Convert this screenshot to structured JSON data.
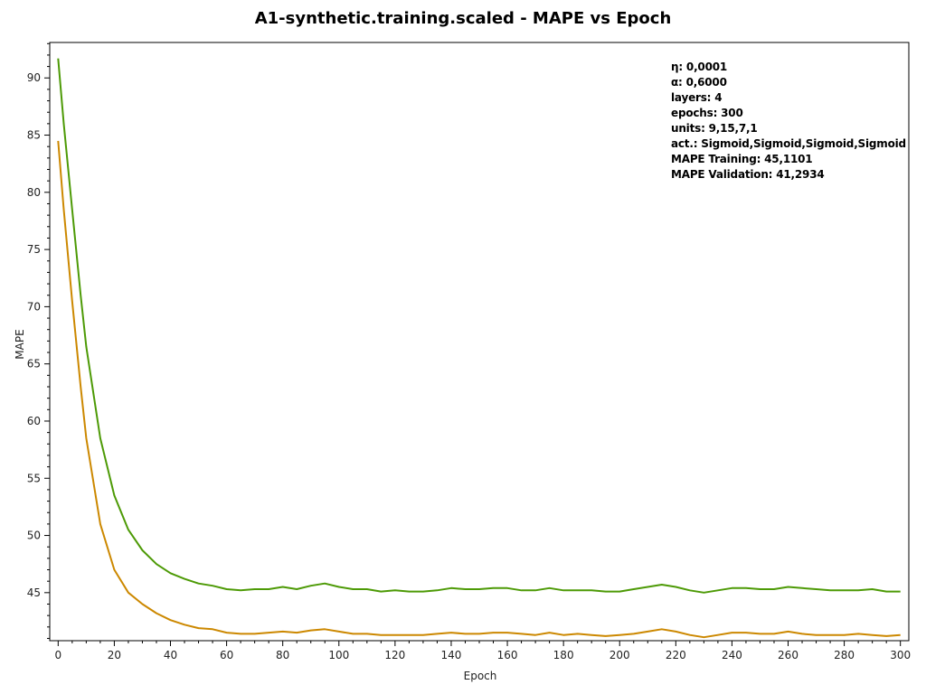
{
  "title": "A1-synthetic.training.scaled - MAPE vs Epoch",
  "info": {
    "eta": "η: 0,0001",
    "alpha": "α: 0,6000",
    "layers": "layers: 4",
    "epochs": "epochs: 300",
    "units": "units: 9,15,7,1",
    "act": "act.: Sigmoid,Sigmoid,Sigmoid,Sigmoid",
    "mape_training": "MAPE Training: 45,1101",
    "mape_validation": "MAPE Validation: 41,2934"
  },
  "colors": {
    "training": "#4d9a06",
    "validation": "#cc8800",
    "axis": "#000000"
  },
  "chart_data": {
    "type": "line",
    "title": "A1-synthetic.training.scaled - MAPE vs Epoch",
    "xlabel": "Epoch",
    "ylabel": "MAPE",
    "xlim": [
      -3,
      303
    ],
    "ylim": [
      40.8,
      93.1
    ],
    "xticks": [
      0,
      20,
      40,
      60,
      80,
      100,
      120,
      140,
      160,
      180,
      200,
      220,
      240,
      260,
      280,
      300
    ],
    "yticks": [
      45,
      50,
      55,
      60,
      65,
      70,
      75,
      80,
      85,
      90
    ],
    "grid": false,
    "x": [
      0,
      2,
      5,
      8,
      10,
      15,
      20,
      25,
      30,
      35,
      40,
      45,
      50,
      55,
      60,
      65,
      70,
      75,
      80,
      85,
      90,
      95,
      100,
      105,
      110,
      115,
      120,
      125,
      130,
      135,
      140,
      145,
      150,
      155,
      160,
      165,
      170,
      175,
      180,
      185,
      190,
      195,
      200,
      205,
      210,
      215,
      220,
      225,
      230,
      235,
      240,
      245,
      250,
      255,
      260,
      265,
      270,
      275,
      280,
      285,
      290,
      295,
      300
    ],
    "series": [
      {
        "values": [
          91.7,
          86.0,
          78.5,
          71.0,
          66.5,
          58.5,
          53.5,
          50.5,
          48.7,
          47.5,
          46.7,
          46.2,
          45.8,
          45.6,
          45.3,
          45.2,
          45.3,
          45.3,
          45.5,
          45.3,
          45.6,
          45.8,
          45.5,
          45.3,
          45.3,
          45.1,
          45.2,
          45.1,
          45.1,
          45.2,
          45.4,
          45.3,
          45.3,
          45.4,
          45.4,
          45.2,
          45.2,
          45.4,
          45.2,
          45.2,
          45.2,
          45.1,
          45.1,
          45.3,
          45.5,
          45.7,
          45.5,
          45.2,
          45.0,
          45.2,
          45.4,
          45.4,
          45.3,
          45.3,
          45.5,
          45.4,
          45.3,
          45.2,
          45.2,
          45.2,
          45.3,
          45.1,
          45.1
        ],
        "color": "#4d9a06"
      },
      {
        "values": [
          84.5,
          78.5,
          70.5,
          63.0,
          58.5,
          51.0,
          47.0,
          45.0,
          44.0,
          43.2,
          42.6,
          42.2,
          41.9,
          41.8,
          41.5,
          41.4,
          41.4,
          41.5,
          41.6,
          41.5,
          41.7,
          41.8,
          41.6,
          41.4,
          41.4,
          41.3,
          41.3,
          41.3,
          41.3,
          41.4,
          41.5,
          41.4,
          41.4,
          41.5,
          41.5,
          41.4,
          41.3,
          41.5,
          41.3,
          41.4,
          41.3,
          41.2,
          41.3,
          41.4,
          41.6,
          41.8,
          41.6,
          41.3,
          41.1,
          41.3,
          41.5,
          41.5,
          41.4,
          41.4,
          41.6,
          41.4,
          41.3,
          41.3,
          41.3,
          41.4,
          41.3,
          41.2,
          41.3
        ],
        "color": "#cc8800"
      }
    ]
  }
}
